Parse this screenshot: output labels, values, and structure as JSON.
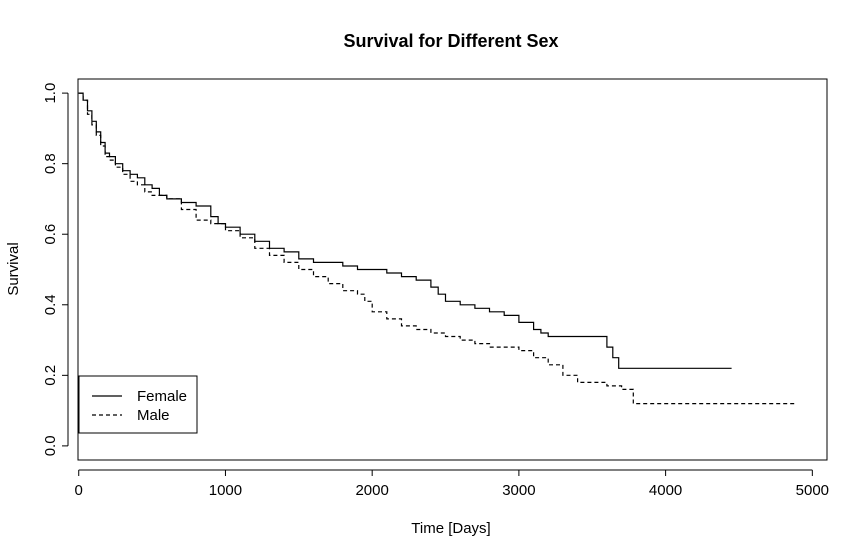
{
  "chart_data": {
    "type": "line",
    "title": "Survival for Different Sex",
    "xlabel": "Time [Days]",
    "ylabel": "Survival",
    "xlim": [
      -5,
      5100
    ],
    "ylim": [
      -0.04,
      1.04
    ],
    "xticks": [
      0,
      1000,
      2000,
      3000,
      4000,
      5000
    ],
    "yticks": [
      0.0,
      0.2,
      0.4,
      0.6,
      0.8,
      1.0
    ],
    "ytick_labels": [
      "0.0",
      "0.2",
      "0.4",
      "0.6",
      "0.8",
      "1.0"
    ],
    "grid": false,
    "legend": {
      "placement": "bottom-left",
      "entries": [
        "Female",
        "Male"
      ]
    },
    "series": [
      {
        "name": "Female",
        "style": "solid",
        "x": [
          0,
          30,
          60,
          90,
          120,
          150,
          180,
          210,
          250,
          300,
          350,
          400,
          450,
          500,
          550,
          600,
          700,
          800,
          900,
          950,
          1000,
          1100,
          1200,
          1300,
          1400,
          1500,
          1600,
          1700,
          1800,
          1900,
          2000,
          2100,
          2200,
          2300,
          2400,
          2450,
          2500,
          2600,
          2700,
          2800,
          2900,
          3000,
          3100,
          3150,
          3200,
          3400,
          3600,
          3640,
          3680,
          4450
        ],
        "y": [
          1.0,
          0.98,
          0.95,
          0.92,
          0.89,
          0.86,
          0.83,
          0.82,
          0.8,
          0.78,
          0.77,
          0.76,
          0.74,
          0.73,
          0.71,
          0.7,
          0.69,
          0.68,
          0.65,
          0.63,
          0.62,
          0.6,
          0.58,
          0.56,
          0.55,
          0.53,
          0.52,
          0.52,
          0.51,
          0.5,
          0.5,
          0.49,
          0.48,
          0.47,
          0.45,
          0.43,
          0.41,
          0.4,
          0.39,
          0.38,
          0.37,
          0.35,
          0.33,
          0.32,
          0.31,
          0.31,
          0.28,
          0.25,
          0.22,
          0.22
        ]
      },
      {
        "name": "Male",
        "style": "dashed",
        "x": [
          0,
          30,
          60,
          90,
          120,
          150,
          180,
          210,
          250,
          300,
          350,
          400,
          450,
          500,
          600,
          700,
          800,
          900,
          1000,
          1100,
          1200,
          1300,
          1400,
          1500,
          1600,
          1700,
          1800,
          1900,
          1950,
          2000,
          2100,
          2200,
          2300,
          2400,
          2500,
          2600,
          2700,
          2800,
          3000,
          3100,
          3200,
          3300,
          3400,
          3500,
          3600,
          3700,
          3780,
          4880
        ],
        "y": [
          1.0,
          0.98,
          0.94,
          0.91,
          0.88,
          0.85,
          0.82,
          0.81,
          0.79,
          0.77,
          0.75,
          0.74,
          0.72,
          0.71,
          0.7,
          0.67,
          0.64,
          0.63,
          0.61,
          0.59,
          0.56,
          0.54,
          0.52,
          0.5,
          0.48,
          0.46,
          0.44,
          0.43,
          0.41,
          0.38,
          0.36,
          0.34,
          0.33,
          0.32,
          0.31,
          0.3,
          0.29,
          0.28,
          0.27,
          0.25,
          0.23,
          0.2,
          0.18,
          0.18,
          0.17,
          0.16,
          0.12,
          0.12
        ]
      }
    ]
  }
}
